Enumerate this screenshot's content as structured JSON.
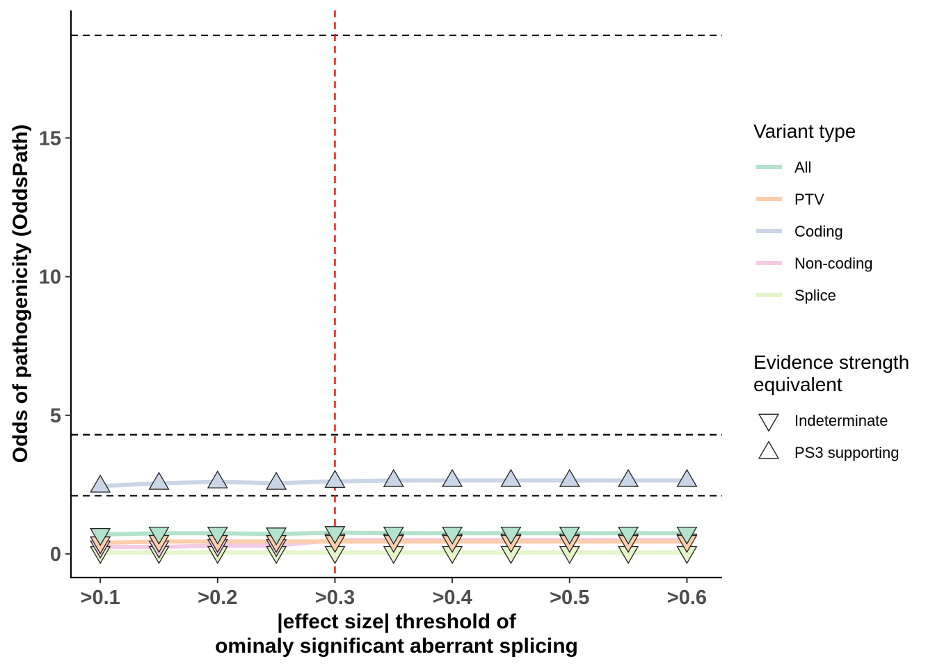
{
  "chart_data": {
    "type": "line",
    "title": "",
    "xlabel": [
      "|effect size| threshold of",
      "ominaly significant aberrant splicing"
    ],
    "ylabel": "Odds of pathogenicity (OddsPath)",
    "x": [
      0.1,
      0.15,
      0.2,
      0.25,
      0.3,
      0.35,
      0.4,
      0.45,
      0.5,
      0.55,
      0.6
    ],
    "xlim": [
      0.075,
      0.63
    ],
    "ylim": [
      -0.85,
      19.6
    ],
    "x_ticks": [
      {
        "value": 0.1,
        "label": ">0.1"
      },
      {
        "value": 0.2,
        "label": ">0.2"
      },
      {
        "value": 0.3,
        "label": ">0.3"
      },
      {
        "value": 0.4,
        "label": ">0.4"
      },
      {
        "value": 0.5,
        "label": ">0.5"
      },
      {
        "value": 0.6,
        "label": ">0.6"
      }
    ],
    "y_ticks": [
      {
        "value": 0,
        "label": "0"
      },
      {
        "value": 5,
        "label": "5"
      },
      {
        "value": 10,
        "label": "10"
      },
      {
        "value": 15,
        "label": "15"
      }
    ],
    "hlines": [
      2.1,
      4.3,
      18.7
    ],
    "vline": 0.3,
    "series": [
      {
        "name": "Splice",
        "color": "#e5f5c9",
        "values": [
          0.05,
          0.05,
          0.05,
          0.05,
          0.05,
          0.05,
          0.05,
          0.05,
          0.05,
          0.05,
          0.05
        ],
        "shapes": [
          "down",
          "down",
          "down",
          "down",
          "down",
          "down",
          "down",
          "down",
          "down",
          "down",
          "down"
        ]
      },
      {
        "name": "Non-coding",
        "color": "#f4cae4",
        "values": [
          0.25,
          0.25,
          0.3,
          0.3,
          0.5,
          0.5,
          0.5,
          0.5,
          0.5,
          0.5,
          0.5
        ],
        "shapes": [
          "down",
          "down",
          "down",
          "down",
          "down",
          "down",
          "down",
          "down",
          "down",
          "down",
          "down"
        ]
      },
      {
        "name": "PTV",
        "color": "#fdcdac",
        "values": [
          0.4,
          0.45,
          0.45,
          0.45,
          0.45,
          0.45,
          0.45,
          0.45,
          0.45,
          0.45,
          0.45
        ],
        "shapes": [
          "down",
          "down",
          "down",
          "down",
          "down",
          "down",
          "down",
          "down",
          "down",
          "down",
          "down"
        ]
      },
      {
        "name": "All",
        "color": "#b3e2cd",
        "values": [
          0.7,
          0.75,
          0.75,
          0.72,
          0.77,
          0.75,
          0.75,
          0.75,
          0.75,
          0.75,
          0.75
        ],
        "shapes": [
          "down",
          "down",
          "down",
          "down",
          "down",
          "down",
          "down",
          "down",
          "down",
          "down",
          "down"
        ]
      },
      {
        "name": "Coding",
        "color": "#cbd5e8",
        "values": [
          2.45,
          2.55,
          2.6,
          2.55,
          2.62,
          2.65,
          2.65,
          2.65,
          2.65,
          2.65,
          2.65
        ],
        "shapes": [
          "up",
          "up",
          "up",
          "up",
          "up",
          "up",
          "up",
          "up",
          "up",
          "up",
          "up"
        ]
      }
    ],
    "legend": {
      "variant_title": "Variant type",
      "variant_items": [
        {
          "label": "All",
          "color": "#b3e2cd"
        },
        {
          "label": "PTV",
          "color": "#fdcdac"
        },
        {
          "label": "Coding",
          "color": "#cbd5e8"
        },
        {
          "label": "Non-coding",
          "color": "#f4cae4"
        },
        {
          "label": "Splice",
          "color": "#e5f5c9"
        }
      ],
      "evidence_title": [
        "Evidence strength",
        "equivalent"
      ],
      "evidence_items": [
        {
          "label": "Indeterminate",
          "shape": "down"
        },
        {
          "label": "PS3 supporting",
          "shape": "up"
        }
      ]
    }
  }
}
